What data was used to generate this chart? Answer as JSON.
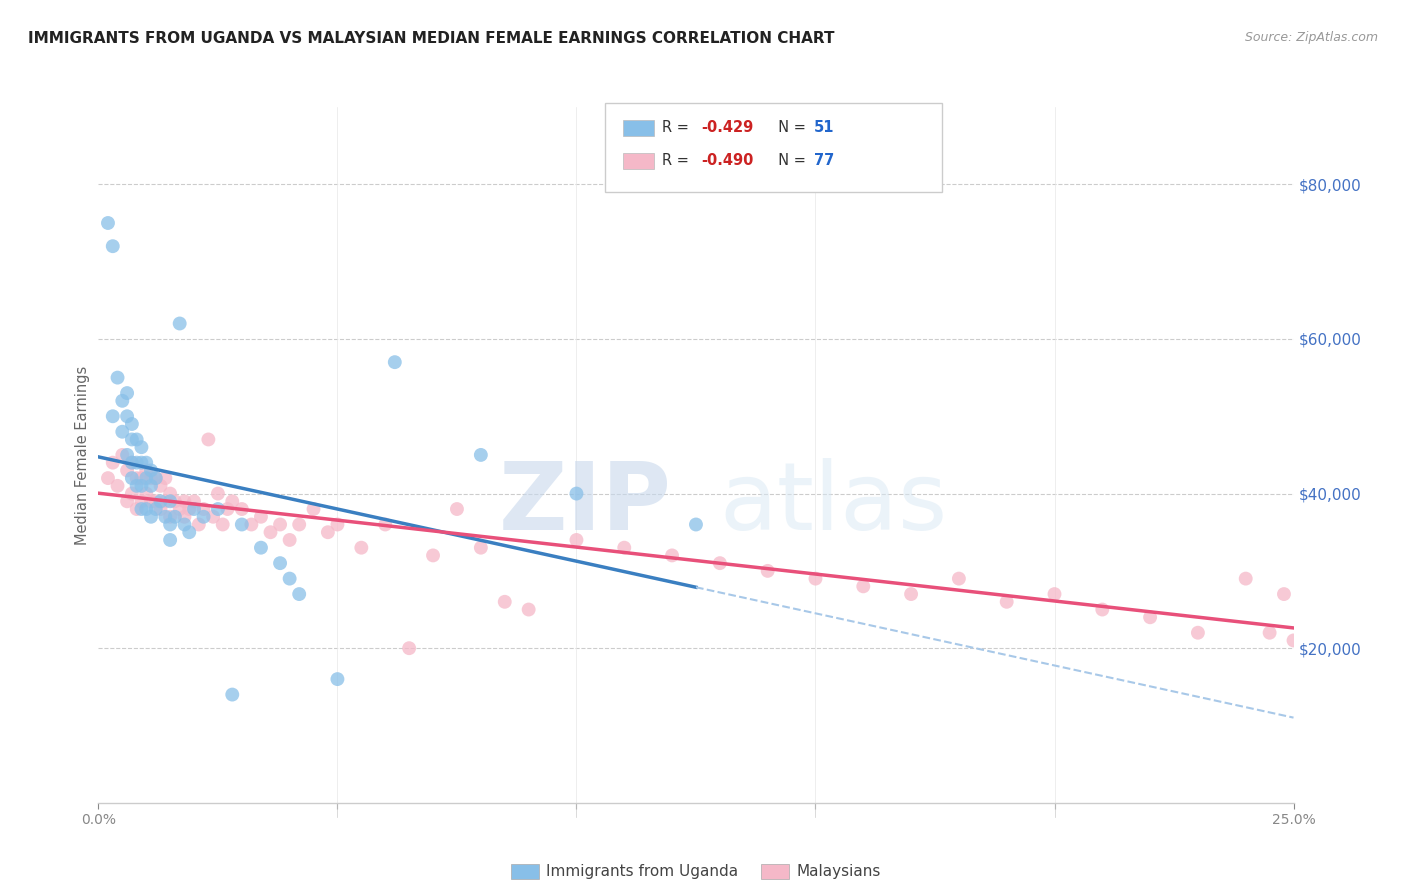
{
  "title": "IMMIGRANTS FROM UGANDA VS MALAYSIAN MEDIAN FEMALE EARNINGS CORRELATION CHART",
  "source": "Source: ZipAtlas.com",
  "ylabel": "Median Female Earnings",
  "yticks": [
    0,
    20000,
    40000,
    60000,
    80000
  ],
  "ytick_labels": [
    "",
    "$20,000",
    "$40,000",
    "$60,000",
    "$80,000"
  ],
  "xlim": [
    0.0,
    0.25
  ],
  "ylim": [
    0,
    90000
  ],
  "legend_r1": "-0.429",
  "legend_n1": "51",
  "legend_r2": "-0.490",
  "legend_n2": "77",
  "watermark_zip": "ZIP",
  "watermark_atlas": "atlas",
  "blue_color": "#88bfe8",
  "pink_color": "#f5b8c8",
  "blue_line_color": "#3a7fc1",
  "pink_line_color": "#e8507a",
  "dashed_line_color": "#a8c8e8",
  "uganda_x": [
    0.002,
    0.003,
    0.003,
    0.004,
    0.005,
    0.005,
    0.006,
    0.006,
    0.006,
    0.007,
    0.007,
    0.007,
    0.007,
    0.008,
    0.008,
    0.008,
    0.009,
    0.009,
    0.009,
    0.009,
    0.01,
    0.01,
    0.01,
    0.011,
    0.011,
    0.011,
    0.012,
    0.012,
    0.013,
    0.014,
    0.015,
    0.015,
    0.015,
    0.016,
    0.017,
    0.018,
    0.019,
    0.02,
    0.022,
    0.025,
    0.028,
    0.03,
    0.034,
    0.038,
    0.04,
    0.042,
    0.05,
    0.062,
    0.08,
    0.1,
    0.125
  ],
  "uganda_y": [
    75000,
    72000,
    50000,
    55000,
    52000,
    48000,
    53000,
    50000,
    45000,
    49000,
    47000,
    44000,
    42000,
    47000,
    44000,
    41000,
    46000,
    44000,
    41000,
    38000,
    44000,
    42000,
    38000,
    43000,
    41000,
    37000,
    42000,
    38000,
    39000,
    37000,
    39000,
    36000,
    34000,
    37000,
    62000,
    36000,
    35000,
    38000,
    37000,
    38000,
    14000,
    36000,
    33000,
    31000,
    29000,
    27000,
    16000,
    57000,
    45000,
    40000,
    36000
  ],
  "malaysia_x": [
    0.002,
    0.003,
    0.004,
    0.005,
    0.006,
    0.006,
    0.007,
    0.007,
    0.008,
    0.008,
    0.009,
    0.009,
    0.01,
    0.01,
    0.011,
    0.011,
    0.012,
    0.012,
    0.013,
    0.013,
    0.014,
    0.014,
    0.015,
    0.015,
    0.016,
    0.017,
    0.018,
    0.018,
    0.019,
    0.02,
    0.021,
    0.022,
    0.023,
    0.024,
    0.025,
    0.026,
    0.027,
    0.028,
    0.03,
    0.032,
    0.034,
    0.036,
    0.038,
    0.04,
    0.042,
    0.045,
    0.048,
    0.05,
    0.055,
    0.06,
    0.065,
    0.07,
    0.075,
    0.08,
    0.085,
    0.09,
    0.1,
    0.11,
    0.12,
    0.13,
    0.14,
    0.15,
    0.16,
    0.17,
    0.18,
    0.19,
    0.2,
    0.21,
    0.22,
    0.23,
    0.24,
    0.245,
    0.248,
    0.25,
    0.252,
    0.255,
    0.258
  ],
  "malaysia_y": [
    42000,
    44000,
    41000,
    45000,
    43000,
    39000,
    44000,
    40000,
    42000,
    38000,
    42000,
    39000,
    43000,
    40000,
    42000,
    39000,
    42000,
    39000,
    41000,
    38000,
    42000,
    39000,
    40000,
    37000,
    39000,
    38000,
    39000,
    37000,
    38000,
    39000,
    36000,
    38000,
    47000,
    37000,
    40000,
    36000,
    38000,
    39000,
    38000,
    36000,
    37000,
    35000,
    36000,
    34000,
    36000,
    38000,
    35000,
    36000,
    33000,
    36000,
    20000,
    32000,
    38000,
    33000,
    26000,
    25000,
    34000,
    33000,
    32000,
    31000,
    30000,
    29000,
    28000,
    27000,
    29000,
    26000,
    27000,
    25000,
    24000,
    22000,
    29000,
    22000,
    27000,
    21000,
    28000,
    24000,
    22000
  ]
}
